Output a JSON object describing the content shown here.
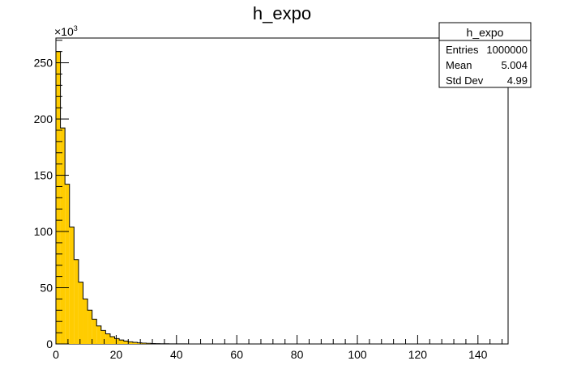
{
  "chart_data": {
    "type": "bar",
    "title": "h_expo",
    "xlabel": "",
    "ylabel": "",
    "xlim": [
      0,
      150
    ],
    "ylim": [
      0,
      272
    ],
    "y_multiplier_label": "×10³",
    "x_ticks": [
      0,
      20,
      40,
      60,
      80,
      100,
      120,
      140
    ],
    "y_ticks": [
      0,
      50,
      100,
      150,
      200,
      250
    ],
    "bin_width": 1.5,
    "bin_start": 0,
    "fill_color": "#ffcc00",
    "line_color": "#000000",
    "series": [
      {
        "values": [
          260,
          192,
          142,
          104,
          75,
          55,
          40,
          30,
          22,
          16,
          12,
          9,
          6.5,
          4.8,
          3.5,
          2.6,
          1.9,
          1.4,
          1.0,
          0.75,
          0.55,
          0.4,
          0.3,
          0.22,
          0.16,
          0.12,
          0.09,
          0.07,
          0.05,
          0.04
        ]
      }
    ],
    "grid": false,
    "legend": "none"
  },
  "stats_box": {
    "title": "h_expo",
    "rows": [
      {
        "label": "Entries",
        "value": "1000000"
      },
      {
        "label": "Mean",
        "value": "5.004"
      },
      {
        "label": "Std Dev",
        "value": "4.99"
      }
    ]
  }
}
